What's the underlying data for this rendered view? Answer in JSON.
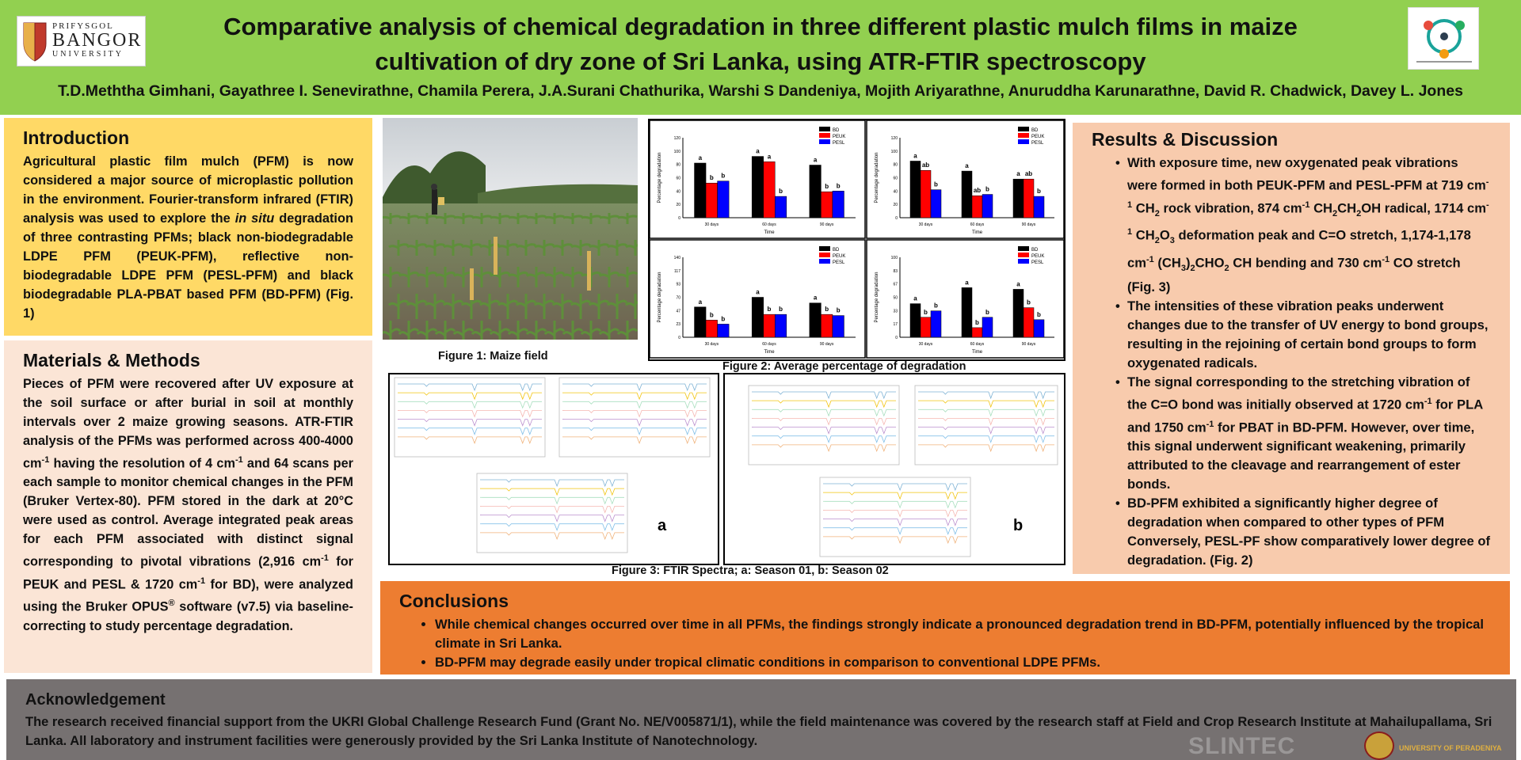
{
  "header": {
    "title_line1": "Comparative analysis of chemical degradation in three different plastic mulch films in maize",
    "title_line2": "cultivation of dry zone of Sri Lanka, using ATR-FTIR spectroscopy",
    "authors": "T.D.Meththa Gimhani, Gayathree I. Senevirathne, Chamila Perera, J.A.Surani Chathurika, Warshi S Dandeniya, Mojith Ariyarathne, Anuruddha Karunarathne, David R. Chadwick, Davey L. Jones",
    "logo_left": {
      "line1": "PRIFYSGOL",
      "line2": "BANGOR",
      "line3": "UNIVERSITY"
    }
  },
  "introduction": {
    "heading": "Introduction",
    "part1": "Agricultural plastic film mulch (PFM) is now considered a major source of microplastic pollution in the environment. Fourier-transform infrared (FTIR) analysis was used to explore the ",
    "italic1": "in situ",
    "part2": " degradation of three contrasting PFMs; black non-biodegradable LDPE PFM (PEUK-PFM), reflective non-biodegradable LDPE PFM (PESL-PFM) and black biodegradable PLA-PBAT based PFM (BD-PFM) (Fig. 1)"
  },
  "methods": {
    "heading": "Materials & Methods",
    "t1": "Pieces of PFM were recovered after UV exposure at the soil surface or after burial in soil at monthly intervals over 2 maize growing seasons. ATR-FTIR analysis of the PFMs was performed across 400-4000 cm",
    "s1": "-1",
    "t2": " having the resolution of 4 cm",
    "s2": "-1",
    "t3": " and 64 scans per each sample to monitor chemical changes in the PFM (Bruker Vertex-80). PFM stored in the dark at 20°C were used as control. Average integrated peak areas for each PFM associated with distinct signal corresponding to pivotal vibrations (2,916 cm",
    "s3": "-1",
    "t4": " for PEUK and PESL & 1720 cm",
    "s4": "-1",
    "t5": " for BD), were analyzed using the Bruker OPUS",
    "s5": "®",
    "t6": " software (v7.5) via baseline-correcting to study percentage degradation."
  },
  "results": {
    "heading": "Results & Discussion",
    "b1": {
      "t1": "With exposure time, new oxygenated peak vibrations were formed in both PEUK-PFM and PESL-PFM at 719 cm",
      "s1": "-1",
      "t2": " CH",
      "u1": "2",
      "t3": " rock vibration, 874 cm",
      "s2": "-1",
      "t4": " CH",
      "u2": "2",
      "t5": "CH",
      "u3": "2",
      "t6": "OH radical, 1714 cm",
      "s3": "-1",
      "t7": " CH",
      "u4": "2",
      "t8": "O",
      "u5": "3",
      "t9": " deformation peak and C=O stretch, 1,174-1,178 cm",
      "s4": "-1",
      "t10": " (CH",
      "u6": "3",
      "t11": ")",
      "u7": "2",
      "t12": "CHO",
      "u8": "2",
      "t13": " CH bending and 730 cm",
      "s5": "-1",
      "t14": " CO stretch (Fig. 3)"
    },
    "b2": "The intensities of these vibration peaks underwent changes due to the transfer of UV energy to bond groups, resulting in the rejoining of certain bond groups to form oxygenated radicals.",
    "b3": {
      "t1": "The signal corresponding to the stretching vibration of the C=O bond was initially observed at 1720 cm",
      "s1": "-1",
      "t2": " for PLA and 1750 cm",
      "s2": "-1",
      "t3": " for PBAT in BD-PFM. However, over time, this signal underwent significant weakening, primarily attributed to the cleavage and rearrangement of ester bonds."
    },
    "b4": "BD-PFM exhibited a significantly higher degree of degradation when compared to other types of PFM Conversely, PESL-PF show comparatively lower degree of degradation. (Fig. 2)"
  },
  "conclusions": {
    "heading": "Conclusions",
    "items": [
      "While chemical changes occurred over time in all PFMs, the findings strongly indicate a pronounced degradation trend in BD-PFM, potentially influenced by the tropical climate in Sri Lanka.",
      "BD-PFM may degrade easily under tropical climatic conditions in comparison to conventional LDPE PFMs."
    ]
  },
  "acknowledgement": {
    "heading": "Acknowledgement",
    "text": "The research received financial support from the UKRI Global Challenge Research Fund (Grant No. NE/V005871/1), while the field maintenance was covered by the research staff at Field and Crop Research Institute at Mahailupallama, Sri Lanka. All laboratory and instrument facilities were generously provided by the Sri Lanka Institute of Nanotechnology.",
    "logo_slintec": "SLINTEC",
    "logo_peradeniya": "UNIVERSITY OF PERADENIYA"
  },
  "figures": {
    "fig1_caption": "Figure 1: Maize field",
    "fig2_caption": "Figure 2: Average percentage of degradation",
    "fig3_caption": "Figure 3: FTIR Spectra; a: Season 01, b: Season 02",
    "fig3a_label": "a",
    "fig3b_label": "b"
  },
  "chart_data": [
    {
      "type": "bar",
      "panel": "top-left",
      "categories": [
        "30 days",
        "60 days",
        "90 days"
      ],
      "xlabel": "Time",
      "ylabel": "Percentage degradation",
      "legend": "top-right",
      "series": [
        {
          "name": "BD",
          "color": "#000000",
          "values": [
            82,
            92,
            79
          ],
          "letters": [
            "a",
            "a",
            "a"
          ]
        },
        {
          "name": "PEUK",
          "color": "#ff0000",
          "values": [
            52,
            84,
            39
          ],
          "letters": [
            "b",
            "a",
            "b"
          ]
        },
        {
          "name": "PESL",
          "color": "#0000ff",
          "values": [
            55,
            32,
            40
          ],
          "letters": [
            "b",
            "b",
            "b"
          ]
        }
      ],
      "ylim": [
        0,
        120
      ]
    },
    {
      "type": "bar",
      "panel": "top-right",
      "categories": [
        "30 days",
        "60 days",
        "90 days"
      ],
      "ylabel": "Percentage degradation",
      "xlabel": "Time",
      "legend": "top-right",
      "series": [
        {
          "name": "BD",
          "color": "#000000",
          "values": [
            85,
            70,
            58
          ],
          "letters": [
            "a",
            "a",
            "a"
          ]
        },
        {
          "name": "PEUK",
          "color": "#ff0000",
          "values": [
            71,
            33,
            58
          ],
          "letters": [
            "ab",
            "ab",
            "ab"
          ]
        },
        {
          "name": "PESL",
          "color": "#0000ff",
          "values": [
            42,
            35,
            32
          ],
          "letters": [
            "b",
            "b",
            "b"
          ]
        }
      ],
      "ylim": [
        0,
        120
      ]
    },
    {
      "type": "bar",
      "panel": "bottom-left",
      "categories": [
        "30 days",
        "60 days",
        "90 days"
      ],
      "ylabel": "Percentage degradation",
      "xlabel": "Time",
      "legend": "top-right",
      "series": [
        {
          "name": "BD",
          "color": "#000000",
          "values": [
            53,
            70,
            60
          ],
          "letters": [
            "a",
            "a",
            "a"
          ]
        },
        {
          "name": "PEUK",
          "color": "#ff0000",
          "values": [
            30,
            40,
            40
          ],
          "letters": [
            "b",
            "b",
            "b"
          ]
        },
        {
          "name": "PESL",
          "color": "#0000ff",
          "values": [
            23,
            40,
            38
          ],
          "letters": [
            "b",
            "b",
            "b"
          ]
        }
      ],
      "ylim": [
        0,
        140
      ]
    },
    {
      "type": "bar",
      "panel": "bottom-right",
      "categories": [
        "30 days",
        "60 days",
        "90 days"
      ],
      "ylabel": "Percentage degradation",
      "xlabel": "Time",
      "legend": "top-right",
      "series": [
        {
          "name": "BD",
          "color": "#000000",
          "values": [
            42,
            62,
            60
          ],
          "letters": [
            "a",
            "a",
            "a"
          ]
        },
        {
          "name": "PEUK",
          "color": "#ff0000",
          "values": [
            25,
            12,
            37
          ],
          "letters": [
            "b",
            "b",
            "b"
          ]
        },
        {
          "name": "PESL",
          "color": "#0000ff",
          "values": [
            33,
            25,
            22
          ],
          "letters": [
            "b",
            "b",
            "b"
          ]
        }
      ],
      "ylim": [
        0,
        100
      ]
    }
  ],
  "colors": {
    "header": "#92d050",
    "intro": "#ffd966",
    "methods": "#fbe5d6",
    "results": "#f8cbad",
    "conclusions": "#ed7d31",
    "ack": "#767171"
  }
}
